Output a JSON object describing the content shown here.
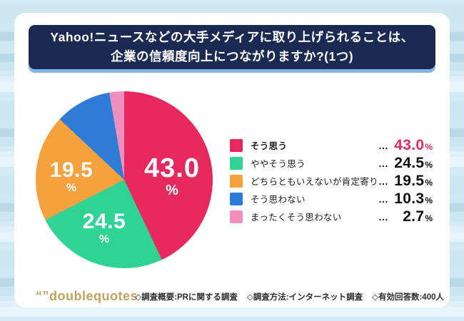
{
  "title": {
    "line1": "Yahoo!ニュースなどの大手メディアに取り上げられることは、",
    "line2": "企業の信頼度向上につながりますか?(1つ)"
  },
  "chart_data": {
    "type": "pie",
    "title": "Yahoo!ニュースなどの大手メディアに取り上げられることは、企業の信頼度向上につながりますか?(1つ)",
    "categories": [
      "そう思う",
      "ややそう思う",
      "どちらともいえないが肯定寄り",
      "そう思わない",
      "まったくそう思わない"
    ],
    "values": [
      43.0,
      24.5,
      19.5,
      10.3,
      2.7
    ],
    "colors": [
      "#e7295f",
      "#2ed395",
      "#f5a23e",
      "#2e7cd8",
      "#f08fbe"
    ],
    "unit": "%",
    "start_angle_deg": 0,
    "direction": "clockwise",
    "legend_position": "right",
    "slice_labels": [
      {
        "text": "43.0",
        "unit": "%"
      },
      {
        "text": "24.5",
        "unit": "%"
      },
      {
        "text": "19.5",
        "unit": "%"
      }
    ]
  },
  "legend": {
    "separator": "…",
    "items": [
      {
        "label": "そう思う",
        "value": "43.0",
        "unit": "%"
      },
      {
        "label": "ややそう思う",
        "value": "24.5",
        "unit": "%"
      },
      {
        "label": "どちらともいえないが肯定寄り",
        "value": "19.5",
        "unit": "%"
      },
      {
        "label": "そう思わない",
        "value": "10.3",
        "unit": "%"
      },
      {
        "label": "まったくそう思わない",
        "value": "2.7",
        "unit": "%"
      }
    ]
  },
  "footer": {
    "logo": "“”doublequotes",
    "notes": [
      "◇調査概要:PRに関する調査",
      "◇調査方法:インターネット調査",
      "◇有効回答数:400人"
    ]
  }
}
